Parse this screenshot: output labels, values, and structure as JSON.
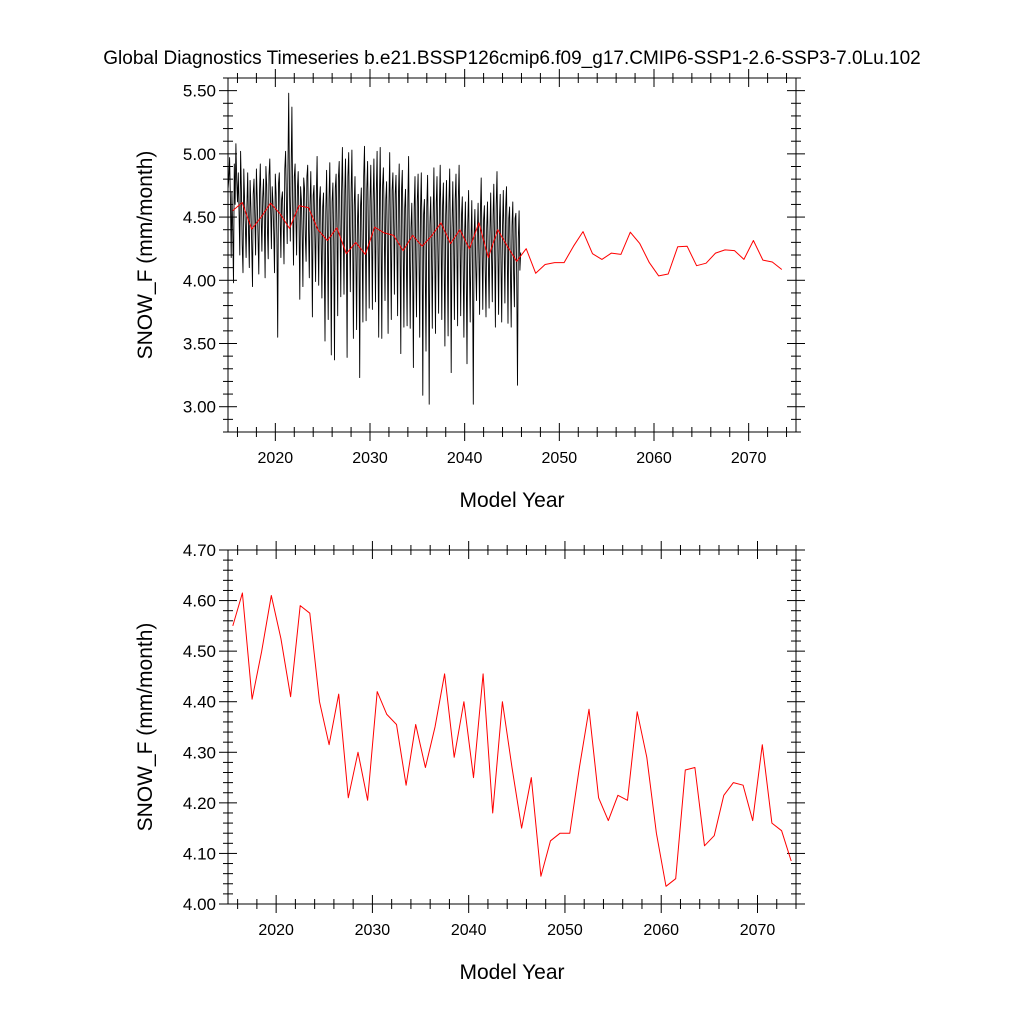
{
  "title": "Global Diagnostics Timeseries b.e21.BSSP126cmip6.f09_g17.CMIP6-SSP1-2.6-SSP3-7.0Lu.102",
  "chart_data": [
    {
      "type": "line",
      "xlabel": "Model Year",
      "ylabel": "SNOW_F (mm/month)",
      "xlim": [
        2015,
        2075
      ],
      "ylim": [
        2.8,
        5.6
      ],
      "x_ticks": [
        "2020",
        "2030",
        "2040",
        "2050",
        "2060",
        "2070"
      ],
      "y_ticks": [
        "3.00",
        "3.50",
        "4.00",
        "4.50",
        "5.00",
        "5.50"
      ],
      "series": [
        {
          "color": "#000000",
          "x_start": 2015,
          "step": 0.08333,
          "values": [
            4.72,
            4.8,
            4.97,
            4.65,
            4.18,
            4.7,
            4.4,
            3.98,
            4.92,
            4.6,
            5.08,
            4.79,
            4.62,
            4.85,
            4.55,
            4.2,
            5.02,
            4.72,
            4.28,
            4.06,
            4.88,
            4.62,
            4.42,
            4.18,
            4.58,
            4.85,
            4.4,
            4.1,
            4.79,
            4.58,
            4.28,
            3.95,
            4.68,
            4.8,
            4.5,
            4.2,
            4.88,
            4.65,
            4.35,
            4.05,
            4.72,
            4.92,
            4.52,
            4.23,
            4.65,
            4.8,
            4.48,
            4.02,
            4.9,
            4.75,
            4.42,
            4.17,
            4.83,
            4.96,
            4.58,
            4.25,
            4.74,
            4.61,
            4.36,
            4.06,
            4.84,
            4.68,
            4.33,
            3.55,
            4.76,
            4.85,
            4.51,
            4.18,
            4.64,
            4.7,
            4.46,
            4.13,
            4.88,
            5.02,
            4.63,
            4.29,
            4.94,
            5.48,
            4.7,
            4.31,
            4.86,
            5.37,
            4.58,
            4.12,
            4.82,
            4.92,
            4.52,
            4.2,
            4.72,
            4.86,
            4.47,
            3.85,
            4.74,
            4.63,
            4.34,
            3.95,
            4.81,
            4.73,
            4.36,
            4.15,
            4.82,
            4.91,
            4.43,
            4.02,
            4.59,
            4.86,
            4.39,
            3.71,
            4.67,
            4.75,
            4.36,
            3.99,
            4.7,
            4.98,
            4.41,
            3.96,
            4.63,
            4.74,
            4.31,
            3.86,
            4.58,
            4.69,
            4.21,
            3.52,
            4.54,
            4.87,
            4.37,
            3.69,
            4.64,
            4.93,
            4.26,
            3.41,
            4.62,
            4.77,
            4.31,
            3.37,
            4.73,
            4.84,
            4.41,
            3.72,
            4.81,
            4.94,
            4.44,
            3.87,
            4.71,
            5.05,
            4.45,
            3.89,
            4.71,
            4.96,
            4.38,
            3.39,
            4.82,
            5.01,
            4.46,
            3.91,
            4.69,
            5.03,
            4.41,
            3.54,
            4.59,
            4.82,
            4.25,
            3.61,
            4.44,
            4.68,
            4.22,
            3.23,
            4.58,
            4.73,
            4.29,
            3.67,
            4.82,
            5.06,
            4.41,
            3.68,
            4.72,
            4.94,
            4.37,
            3.78,
            4.63,
            4.91,
            4.35,
            3.77,
            4.61,
            4.96,
            4.43,
            3.83,
            4.68,
            5.02,
            4.31,
            3.55,
            4.66,
            5.05,
            4.38,
            3.54,
            4.75,
            4.89,
            4.47,
            3.84,
            4.64,
            4.78,
            4.31,
            3.58,
            4.59,
            5.01,
            4.31,
            3.69,
            4.71,
            4.85,
            4.42,
            3.89,
            4.68,
            4.83,
            4.34,
            3.72,
            4.65,
            4.92,
            4.26,
            3.42,
            4.71,
            4.87,
            4.33,
            3.63,
            4.57,
            4.72,
            4.21,
            3.64,
            4.65,
            4.98,
            4.29,
            3.62,
            4.41,
            4.61,
            4.12,
            3.31,
            4.58,
            4.82,
            4.18,
            3.71,
            4.62,
            4.84,
            4.26,
            3.55,
            4.55,
            4.85,
            4.27,
            3.09,
            4.52,
            4.64,
            4.14,
            3.44,
            4.58,
            4.83,
            4.23,
            3.02,
            4.44,
            4.66,
            4.22,
            3.62,
            4.48,
            4.89,
            4.24,
            3.58,
            4.62,
            4.82,
            4.25,
            3.74,
            4.57,
            4.91,
            4.38,
            3.69,
            4.59,
            4.77,
            4.22,
            3.48,
            4.51,
            4.79,
            4.23,
            3.56,
            4.61,
            4.88,
            4.27,
            3.27,
            4.41,
            4.78,
            4.33,
            3.69,
            4.64,
            4.84,
            4.29,
            3.64,
            4.63,
            4.91,
            4.35,
            3.72,
            4.51,
            4.66,
            4.16,
            3.55,
            4.39,
            4.62,
            4.11,
            3.34,
            4.45,
            4.71,
            4.15,
            3.67,
            4.32,
            4.63,
            4.08,
            3.02,
            4.36,
            4.56,
            4.12,
            3.84,
            4.36,
            4.61,
            4.18,
            3.73,
            4.54,
            4.81,
            4.26,
            3.77,
            4.48,
            4.59,
            4.09,
            3.71,
            4.41,
            4.62,
            4.17,
            3.78,
            4.38,
            4.69,
            4.21,
            3.83,
            4.51,
            4.76,
            4.28,
            3.63,
            4.59,
            4.86,
            4.27,
            3.73,
            4.45,
            4.68,
            4.18,
            3.67,
            4.41,
            4.71,
            4.28,
            3.82,
            4.58,
            4.74,
            4.19,
            3.66,
            4.49,
            4.58,
            4.07,
            3.63,
            4.43,
            4.62,
            4.06,
            3.79,
            4.49,
            4.53,
            4.03,
            3.17,
            4.32,
            4.55,
            4.08,
            4.22
          ]
        },
        {
          "color": "#ff0000",
          "x_start": 2015.5,
          "step": 1,
          "values": [
            4.55,
            4.615,
            4.405,
            4.5,
            4.61,
            4.525,
            4.41,
            4.59,
            4.575,
            4.4,
            4.315,
            4.415,
            4.21,
            4.3,
            4.205,
            4.42,
            4.375,
            4.355,
            4.235,
            4.355,
            4.27,
            4.35,
            4.455,
            4.29,
            4.4,
            4.25,
            4.455,
            4.18,
            4.4,
            4.27,
            4.15,
            4.25,
            4.055,
            4.125,
            4.14,
            4.14,
            4.27,
            4.385,
            4.21,
            4.165,
            4.215,
            4.205,
            4.38,
            4.29,
            4.14,
            4.035,
            4.05,
            4.265,
            4.27,
            4.115,
            4.135,
            4.215,
            4.24,
            4.235,
            4.165,
            4.315,
            4.16,
            4.145,
            4.085
          ]
        }
      ]
    },
    {
      "type": "line",
      "xlabel": "Model Year",
      "ylabel": "SNOW_F (mm/month)",
      "xlim": [
        2015,
        2074
      ],
      "ylim": [
        4.0,
        4.7
      ],
      "x_ticks": [
        "2020",
        "2030",
        "2040",
        "2050",
        "2060",
        "2070"
      ],
      "y_ticks": [
        "4.00",
        "4.10",
        "4.20",
        "4.30",
        "4.40",
        "4.50",
        "4.60",
        "4.70"
      ],
      "series": [
        {
          "color": "#ff0000",
          "x_start": 2015.5,
          "step": 1,
          "values": [
            4.55,
            4.615,
            4.405,
            4.5,
            4.61,
            4.525,
            4.41,
            4.59,
            4.575,
            4.4,
            4.315,
            4.415,
            4.21,
            4.3,
            4.205,
            4.42,
            4.375,
            4.355,
            4.235,
            4.355,
            4.27,
            4.35,
            4.455,
            4.29,
            4.4,
            4.25,
            4.455,
            4.18,
            4.4,
            4.27,
            4.15,
            4.25,
            4.055,
            4.125,
            4.14,
            4.14,
            4.27,
            4.385,
            4.21,
            4.165,
            4.215,
            4.205,
            4.38,
            4.29,
            4.14,
            4.035,
            4.05,
            4.265,
            4.27,
            4.115,
            4.135,
            4.215,
            4.24,
            4.235,
            4.165,
            4.315,
            4.16,
            4.145,
            4.085
          ]
        }
      ]
    }
  ]
}
